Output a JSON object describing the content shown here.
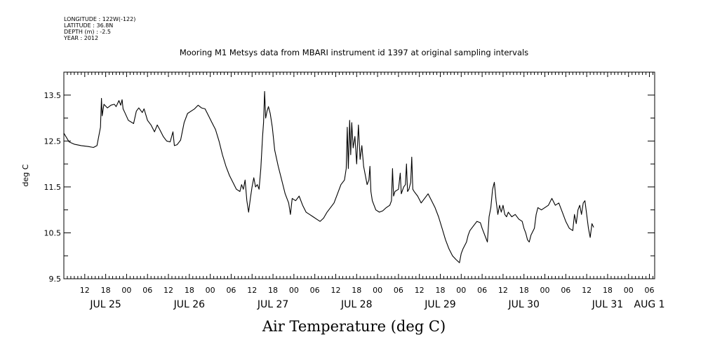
{
  "header": {
    "longitude": "LONGITUDE : 122W(-122)",
    "latitude": "LATITUDE : 36.8N",
    "depth": "DEPTH (m) : -2.5",
    "year": "YEAR : 2012"
  },
  "chart_data": {
    "type": "line",
    "title": "Mooring M1 Metsys data from MBARI instrument id 1397 at original sampling intervals",
    "xlabel": "Air Temperature (deg C)",
    "ylabel": "deg C",
    "x_units": "hours since 2012-07-24 06:00 (axis spans JUL 25 – AUG 1)",
    "xlim": [
      0,
      169.5
    ],
    "ylim": [
      9.5,
      14.0
    ],
    "yticks": [
      9.5,
      10.5,
      11.5,
      12.5,
      13.5
    ],
    "ytick_labels": [
      "9.5",
      "10.5",
      "11.5",
      "12.5",
      "13.5"
    ],
    "hour_ticks": [
      {
        "t": 6,
        "label": "12"
      },
      {
        "t": 12,
        "label": "18"
      },
      {
        "t": 18,
        "label": "00"
      },
      {
        "t": 24,
        "label": "06"
      },
      {
        "t": 30,
        "label": "12"
      },
      {
        "t": 36,
        "label": "18"
      },
      {
        "t": 42,
        "label": "00"
      },
      {
        "t": 48,
        "label": "06"
      },
      {
        "t": 54,
        "label": "12"
      },
      {
        "t": 60,
        "label": "18"
      },
      {
        "t": 66,
        "label": "00"
      },
      {
        "t": 72,
        "label": "06"
      },
      {
        "t": 78,
        "label": "12"
      },
      {
        "t": 84,
        "label": "18"
      },
      {
        "t": 90,
        "label": "00"
      },
      {
        "t": 96,
        "label": "06"
      },
      {
        "t": 102,
        "label": "12"
      },
      {
        "t": 108,
        "label": "18"
      },
      {
        "t": 114,
        "label": "00"
      },
      {
        "t": 120,
        "label": "06"
      },
      {
        "t": 126,
        "label": "12"
      },
      {
        "t": 132,
        "label": "18"
      },
      {
        "t": 138,
        "label": "00"
      },
      {
        "t": 144,
        "label": "06"
      },
      {
        "t": 150,
        "label": "12"
      },
      {
        "t": 156,
        "label": "18"
      },
      {
        "t": 162,
        "label": "00"
      },
      {
        "t": 168,
        "label": "06"
      }
    ],
    "day_labels": [
      {
        "t": 12,
        "label": "JUL 25"
      },
      {
        "t": 36,
        "label": "JUL 26"
      },
      {
        "t": 60,
        "label": "JUL 27"
      },
      {
        "t": 84,
        "label": "JUL 28"
      },
      {
        "t": 108,
        "label": "JUL 29"
      },
      {
        "t": 132,
        "label": "JUL 30"
      },
      {
        "t": 156,
        "label": "JUL 31"
      },
      {
        "t": 168,
        "label": "AUG 1"
      }
    ],
    "series": [
      {
        "color": "#000000",
        "points": [
          [
            0.0,
            12.67
          ],
          [
            1.5,
            12.48
          ],
          [
            3.0,
            12.43
          ],
          [
            5.0,
            12.4
          ],
          [
            7.0,
            12.38
          ],
          [
            8.5,
            12.36
          ],
          [
            9.5,
            12.4
          ],
          [
            10.5,
            12.8
          ],
          [
            10.8,
            13.43
          ],
          [
            11.0,
            13.05
          ],
          [
            11.5,
            13.3
          ],
          [
            12.5,
            13.22
          ],
          [
            13.5,
            13.28
          ],
          [
            14.5,
            13.3
          ],
          [
            15.0,
            13.25
          ],
          [
            15.8,
            13.38
          ],
          [
            16.3,
            13.28
          ],
          [
            16.7,
            13.4
          ],
          [
            17.0,
            13.2
          ],
          [
            17.5,
            13.12
          ],
          [
            18.5,
            12.95
          ],
          [
            20.0,
            12.88
          ],
          [
            20.8,
            13.15
          ],
          [
            21.5,
            13.22
          ],
          [
            22.5,
            13.12
          ],
          [
            23.0,
            13.2
          ],
          [
            24.0,
            12.95
          ],
          [
            25.0,
            12.85
          ],
          [
            26.0,
            12.7
          ],
          [
            26.8,
            12.85
          ],
          [
            27.5,
            12.75
          ],
          [
            28.5,
            12.6
          ],
          [
            29.5,
            12.5
          ],
          [
            30.5,
            12.48
          ],
          [
            31.0,
            12.62
          ],
          [
            31.3,
            12.7
          ],
          [
            31.7,
            12.4
          ],
          [
            32.5,
            12.42
          ],
          [
            33.5,
            12.52
          ],
          [
            34.5,
            12.9
          ],
          [
            35.5,
            13.1
          ],
          [
            36.5,
            13.15
          ],
          [
            37.5,
            13.2
          ],
          [
            38.5,
            13.28
          ],
          [
            39.5,
            13.22
          ],
          [
            40.5,
            13.2
          ],
          [
            41.5,
            13.05
          ],
          [
            42.5,
            12.9
          ],
          [
            43.5,
            12.75
          ],
          [
            44.5,
            12.5
          ],
          [
            45.5,
            12.2
          ],
          [
            46.5,
            11.95
          ],
          [
            47.5,
            11.75
          ],
          [
            48.5,
            11.6
          ],
          [
            49.5,
            11.45
          ],
          [
            50.5,
            11.4
          ],
          [
            51.0,
            11.55
          ],
          [
            51.5,
            11.45
          ],
          [
            52.0,
            11.65
          ],
          [
            52.5,
            11.2
          ],
          [
            53.0,
            10.95
          ],
          [
            53.5,
            11.25
          ],
          [
            54.0,
            11.5
          ],
          [
            54.5,
            11.7
          ],
          [
            55.0,
            11.5
          ],
          [
            55.5,
            11.55
          ],
          [
            56.0,
            11.45
          ],
          [
            56.5,
            11.9
          ],
          [
            57.0,
            12.6
          ],
          [
            57.3,
            12.9
          ],
          [
            57.6,
            13.58
          ],
          [
            57.9,
            13.0
          ],
          [
            58.3,
            13.15
          ],
          [
            58.7,
            13.25
          ],
          [
            59.2,
            13.1
          ],
          [
            59.8,
            12.8
          ],
          [
            60.5,
            12.3
          ],
          [
            61.5,
            11.95
          ],
          [
            62.5,
            11.65
          ],
          [
            63.5,
            11.35
          ],
          [
            64.5,
            11.15
          ],
          [
            65.0,
            10.9
          ],
          [
            65.5,
            11.25
          ],
          [
            66.5,
            11.2
          ],
          [
            67.5,
            11.3
          ],
          [
            68.5,
            11.1
          ],
          [
            69.5,
            10.95
          ],
          [
            70.5,
            10.9
          ],
          [
            71.5,
            10.85
          ],
          [
            72.5,
            10.8
          ],
          [
            73.5,
            10.75
          ],
          [
            74.5,
            10.82
          ],
          [
            75.5,
            10.95
          ],
          [
            76.5,
            11.05
          ],
          [
            77.5,
            11.15
          ],
          [
            78.5,
            11.35
          ],
          [
            79.5,
            11.55
          ],
          [
            80.5,
            11.65
          ],
          [
            81.0,
            11.9
          ],
          [
            81.3,
            12.8
          ],
          [
            81.6,
            11.9
          ],
          [
            82.0,
            12.95
          ],
          [
            82.3,
            12.2
          ],
          [
            82.6,
            12.9
          ],
          [
            83.0,
            12.35
          ],
          [
            83.5,
            12.6
          ],
          [
            84.0,
            12.0
          ],
          [
            84.5,
            12.85
          ],
          [
            85.0,
            12.1
          ],
          [
            85.5,
            12.4
          ],
          [
            86.0,
            11.95
          ],
          [
            86.5,
            11.75
          ],
          [
            87.0,
            11.55
          ],
          [
            87.5,
            11.65
          ],
          [
            87.8,
            11.95
          ],
          [
            88.1,
            11.4
          ],
          [
            88.5,
            11.2
          ],
          [
            89.5,
            11.0
          ],
          [
            90.5,
            10.95
          ],
          [
            91.5,
            10.98
          ],
          [
            92.5,
            11.05
          ],
          [
            93.5,
            11.1
          ],
          [
            94.0,
            11.2
          ],
          [
            94.3,
            11.9
          ],
          [
            94.6,
            11.3
          ],
          [
            95.0,
            11.4
          ],
          [
            96.0,
            11.45
          ],
          [
            96.5,
            11.8
          ],
          [
            96.8,
            11.35
          ],
          [
            97.5,
            11.5
          ],
          [
            98.0,
            11.55
          ],
          [
            98.3,
            12.0
          ],
          [
            98.6,
            11.4
          ],
          [
            99.0,
            11.45
          ],
          [
            99.5,
            11.6
          ],
          [
            99.8,
            12.15
          ],
          [
            100.1,
            11.45
          ],
          [
            100.5,
            11.4
          ],
          [
            101.5,
            11.3
          ],
          [
            102.5,
            11.15
          ],
          [
            103.5,
            11.25
          ],
          [
            104.5,
            11.35
          ],
          [
            105.5,
            11.2
          ],
          [
            106.5,
            11.05
          ],
          [
            107.5,
            10.85
          ],
          [
            108.5,
            10.6
          ],
          [
            109.5,
            10.35
          ],
          [
            110.5,
            10.15
          ],
          [
            111.5,
            10.0
          ],
          [
            112.5,
            9.92
          ],
          [
            113.5,
            9.85
          ],
          [
            114.0,
            10.05
          ],
          [
            114.5,
            10.15
          ],
          [
            115.5,
            10.3
          ],
          [
            116.0,
            10.45
          ],
          [
            116.5,
            10.55
          ],
          [
            117.5,
            10.65
          ],
          [
            118.5,
            10.75
          ],
          [
            119.5,
            10.72
          ],
          [
            120.0,
            10.6
          ],
          [
            121.0,
            10.4
          ],
          [
            121.5,
            10.3
          ],
          [
            122.0,
            10.85
          ],
          [
            122.5,
            11.05
          ],
          [
            123.0,
            11.45
          ],
          [
            123.5,
            11.6
          ],
          [
            124.0,
            11.2
          ],
          [
            124.5,
            10.9
          ],
          [
            125.0,
            11.1
          ],
          [
            125.5,
            10.95
          ],
          [
            126.0,
            11.1
          ],
          [
            126.5,
            10.9
          ],
          [
            127.0,
            10.85
          ],
          [
            127.5,
            10.95
          ],
          [
            128.5,
            10.85
          ],
          [
            129.5,
            10.9
          ],
          [
            130.5,
            10.8
          ],
          [
            131.5,
            10.75
          ],
          [
            132.0,
            10.6
          ],
          [
            132.5,
            10.5
          ],
          [
            133.0,
            10.35
          ],
          [
            133.5,
            10.3
          ],
          [
            134.0,
            10.45
          ],
          [
            135.0,
            10.6
          ],
          [
            135.5,
            10.9
          ],
          [
            136.0,
            11.05
          ],
          [
            137.0,
            11.0
          ],
          [
            138.0,
            11.05
          ],
          [
            139.0,
            11.1
          ],
          [
            140.0,
            11.25
          ],
          [
            141.0,
            11.1
          ],
          [
            142.0,
            11.15
          ],
          [
            143.0,
            10.95
          ],
          [
            144.0,
            10.75
          ],
          [
            145.0,
            10.6
          ],
          [
            146.0,
            10.55
          ],
          [
            146.5,
            10.9
          ],
          [
            147.0,
            10.7
          ],
          [
            147.5,
            11.0
          ],
          [
            148.0,
            11.1
          ],
          [
            148.5,
            10.9
          ],
          [
            149.0,
            11.15
          ],
          [
            149.5,
            11.2
          ],
          [
            150.0,
            10.9
          ],
          [
            150.5,
            10.6
          ],
          [
            151.0,
            10.4
          ],
          [
            151.5,
            10.7
          ],
          [
            152.0,
            10.62
          ]
        ]
      }
    ]
  }
}
